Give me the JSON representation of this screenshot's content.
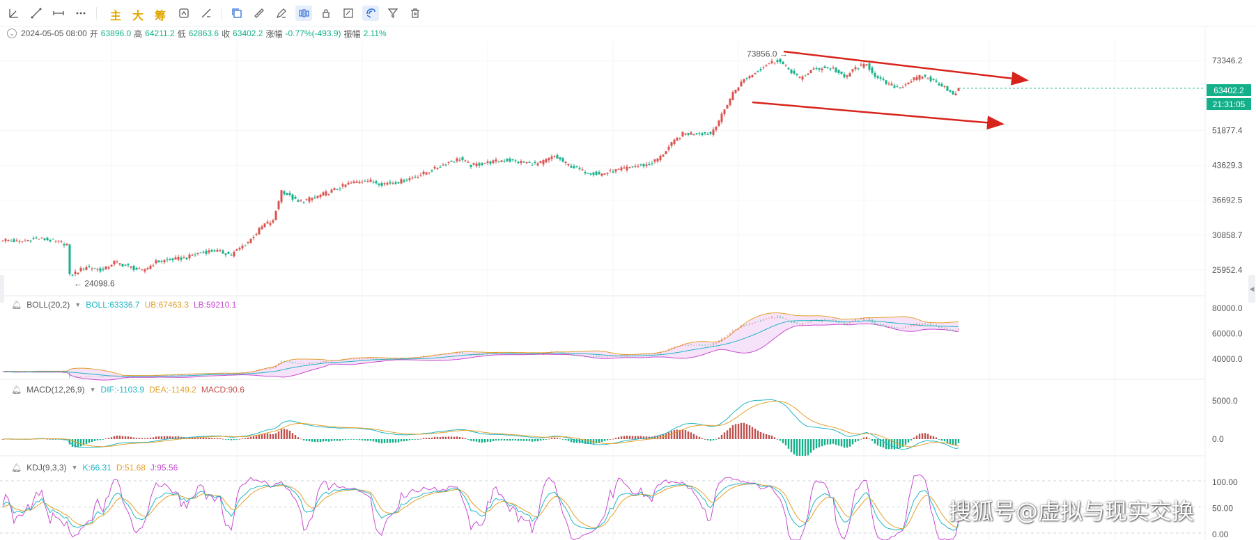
{
  "toolbar": {
    "text_buttons": [
      "主",
      "大",
      "筹"
    ]
  },
  "ohlc": {
    "datetime": "2024-05-05 08:00",
    "open_label": "开",
    "open": "63896.0",
    "high_label": "高",
    "high": "64211.2",
    "low_label": "低",
    "low": "62863.6",
    "close_label": "收",
    "close": "63402.2",
    "change_label": "涨幅",
    "change": "-0.77%(-493.9)",
    "amplitude_label": "振幅",
    "amplitude": "2.11%"
  },
  "price_axis": {
    "ticks": [
      "73346.2",
      "51877.4",
      "43629.3",
      "36692.5",
      "30858.7",
      "25952.4"
    ],
    "current_price": "63402.2",
    "countdown": "21:31:05"
  },
  "annotations": {
    "high_marker": "73856.0",
    "low_marker": "24098.6"
  },
  "boll": {
    "name": "BOLL(20,2)",
    "boll": "BOLL:63336.7",
    "ub": "UB:67463.3",
    "lb": "LB:59210.1",
    "ticks": [
      "80000.0",
      "60000.0",
      "40000.0"
    ]
  },
  "macd": {
    "name": "MACD(12,26,9)",
    "dif": "DIF:-1103.9",
    "dea": "DEA:-1149.2",
    "macd": "MACD:90.6",
    "ticks": [
      "5000.0",
      "0.0"
    ]
  },
  "kdj": {
    "name": "KDJ(9,3,3)",
    "k": "K:66.31",
    "d": "D:51.68",
    "j": "J:95.56",
    "ticks": [
      "100.00",
      "50.00",
      "0.00"
    ]
  },
  "watermark": "搜狐号@虚拟与现实交换",
  "colors": {
    "up": "#d9534f",
    "down": "#14b08a",
    "trend_line": "#d8231b",
    "boll_fill": "#f3d7f7"
  },
  "chart_data": {
    "type": "candlestick",
    "anchors": [
      [
        0,
        30200
      ],
      [
        6,
        29800
      ],
      [
        12,
        30400
      ],
      [
        18,
        30000
      ],
      [
        23,
        29500
      ],
      [
        24,
        25200
      ],
      [
        30,
        26400
      ],
      [
        36,
        25900
      ],
      [
        40,
        27000
      ],
      [
        45,
        26400
      ],
      [
        50,
        25800
      ],
      [
        55,
        27000
      ],
      [
        60,
        27300
      ],
      [
        66,
        27600
      ],
      [
        70,
        28200
      ],
      [
        76,
        28600
      ],
      [
        82,
        28000
      ],
      [
        88,
        29800
      ],
      [
        94,
        32600
      ],
      [
        97,
        33000
      ],
      [
        100,
        38500
      ],
      [
        106,
        36300
      ],
      [
        112,
        37200
      ],
      [
        118,
        38400
      ],
      [
        124,
        39800
      ],
      [
        130,
        40600
      ],
      [
        136,
        39800
      ],
      [
        142,
        40200
      ],
      [
        148,
        41200
      ],
      [
        154,
        42600
      ],
      [
        160,
        44300
      ],
      [
        164,
        45100
      ],
      [
        168,
        43600
      ],
      [
        174,
        44200
      ],
      [
        180,
        44800
      ],
      [
        186,
        44300
      ],
      [
        192,
        43900
      ],
      [
        198,
        45600
      ],
      [
        202,
        44000
      ],
      [
        208,
        42400
      ],
      [
        214,
        41700
      ],
      [
        220,
        42500
      ],
      [
        226,
        43300
      ],
      [
        232,
        43800
      ],
      [
        236,
        45500
      ],
      [
        240,
        48500
      ],
      [
        244,
        51000
      ],
      [
        250,
        51200
      ],
      [
        254,
        51000
      ],
      [
        258,
        55800
      ],
      [
        262,
        62500
      ],
      [
        266,
        66800
      ],
      [
        270,
        69000
      ],
      [
        274,
        71900
      ],
      [
        278,
        73500
      ],
      [
        282,
        70300
      ],
      [
        286,
        67000
      ],
      [
        290,
        69700
      ],
      [
        294,
        70800
      ],
      [
        298,
        70500
      ],
      [
        302,
        67200
      ],
      [
        306,
        70700
      ],
      [
        310,
        71800
      ],
      [
        314,
        67000
      ],
      [
        318,
        65000
      ],
      [
        322,
        64200
      ],
      [
        326,
        66500
      ],
      [
        330,
        68000
      ],
      [
        334,
        66200
      ],
      [
        338,
        64600
      ],
      [
        341,
        61600
      ],
      [
        343,
        63400
      ]
    ]
  }
}
